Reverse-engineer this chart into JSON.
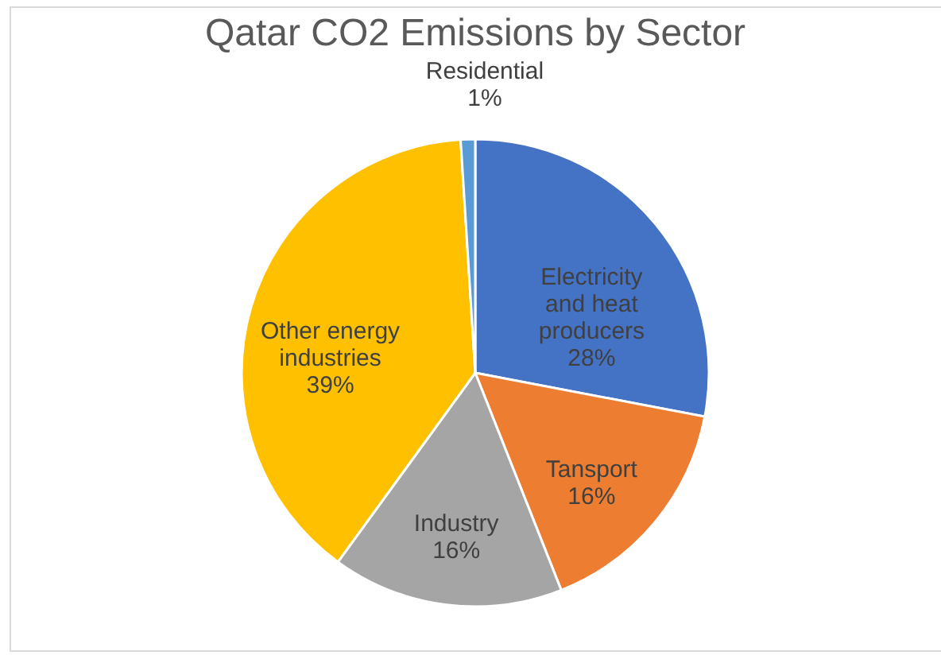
{
  "chart_data": {
    "type": "pie",
    "title": "Qatar CO2 Emissions by Sector",
    "categories": [
      "Electricity and heat producers",
      "Tansport",
      "Industry",
      "Other energy industries",
      "Residential"
    ],
    "values": [
      28,
      16,
      16,
      39,
      1
    ],
    "value_labels": [
      "28%",
      "16%",
      "16%",
      "39%",
      "1%"
    ],
    "colors": [
      "#4472c4",
      "#ed7d31",
      "#a5a5a5",
      "#ffc000",
      "#5b9bd5"
    ],
    "legend": false
  }
}
